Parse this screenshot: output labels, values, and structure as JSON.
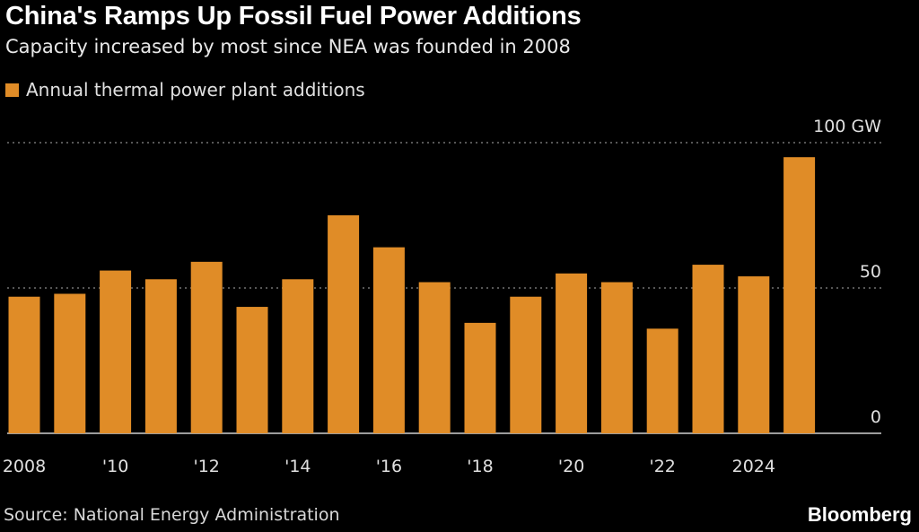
{
  "title": "China's Ramps Up Fossil Fuel Power Additions",
  "subtitle": "Capacity increased by most since NEA was founded in 2008",
  "source": "Source: National Energy Administration",
  "logo": "Bloomberg",
  "colors": {
    "bar": "#e08c27",
    "background": "#000000",
    "grid": "#8a8a8a"
  },
  "chart_data": {
    "type": "bar",
    "legend": [
      "Annual thermal power plant additions"
    ],
    "legend_placement": "top-left",
    "categories": [
      "2008",
      "2009",
      "2010",
      "2011",
      "2012",
      "2013",
      "2014",
      "2015",
      "2016",
      "2017",
      "2018",
      "2019",
      "2020",
      "2021",
      "2022",
      "2023",
      "2024",
      "2025"
    ],
    "series": [
      {
        "name": "Annual thermal power plant additions",
        "values": [
          47,
          48,
          56,
          53,
          59,
          43.5,
          53,
          75,
          64,
          52,
          38,
          47,
          55,
          52,
          36,
          58,
          54,
          95
        ]
      }
    ],
    "x_tick_labels": [
      {
        "at": "2008",
        "label": "2008"
      },
      {
        "at": "2010",
        "label": "'10"
      },
      {
        "at": "2012",
        "label": "'12"
      },
      {
        "at": "2014",
        "label": "'14"
      },
      {
        "at": "2016",
        "label": "'16"
      },
      {
        "at": "2018",
        "label": "'18"
      },
      {
        "at": "2020",
        "label": "'20"
      },
      {
        "at": "2022",
        "label": "'22"
      },
      {
        "at": "2024",
        "label": "2024"
      }
    ],
    "y_ticks": [
      {
        "value": 0,
        "label": "0"
      },
      {
        "value": 50,
        "label": "50"
      },
      {
        "value": 100,
        "label": "100 GW"
      }
    ],
    "ylim": [
      0,
      100
    ],
    "y_axis_side": "right",
    "grid": true
  }
}
